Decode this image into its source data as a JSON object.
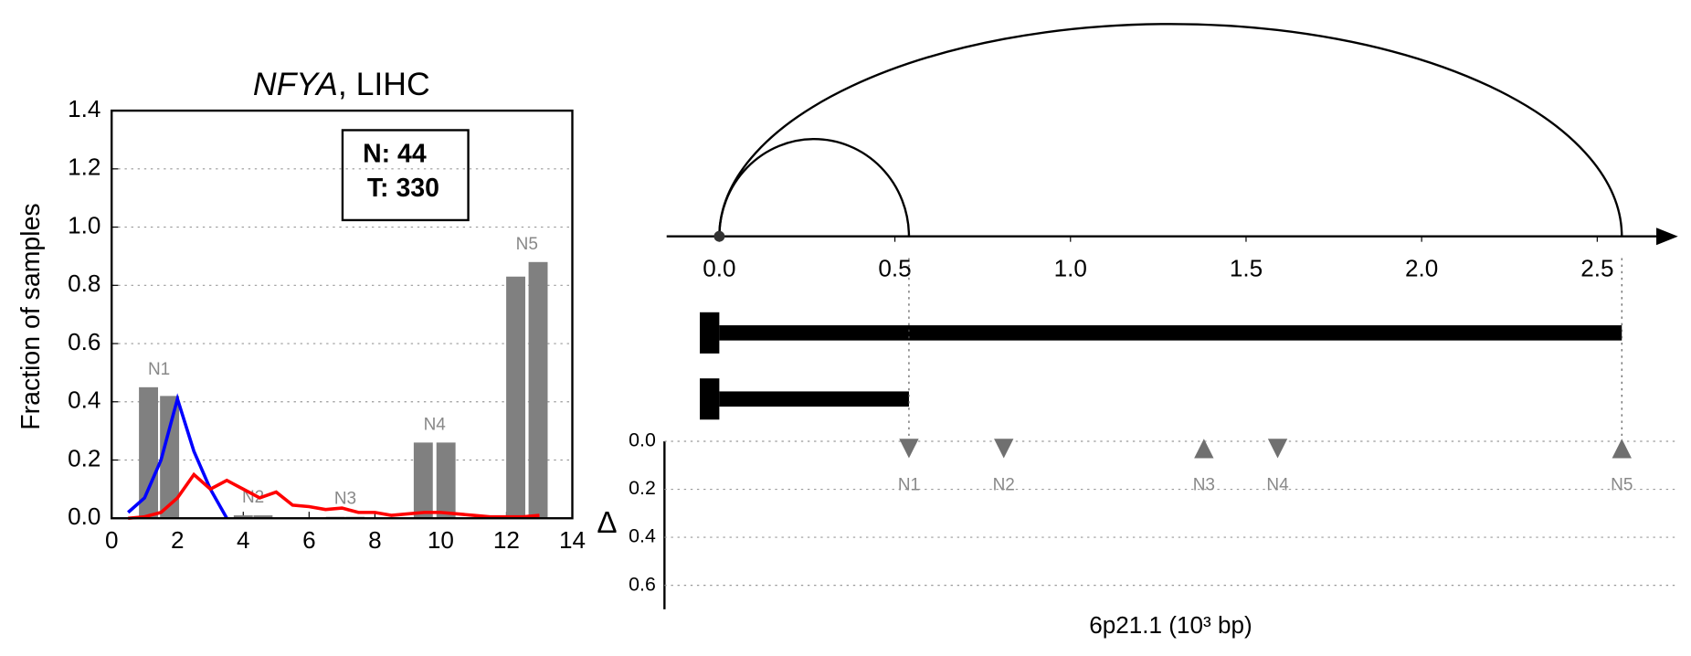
{
  "chart_data": [
    {
      "type": "bar",
      "title_gene": "NFYA",
      "title_rest": ", LIHC",
      "ylabel": "Fraction of samples",
      "xlim": [
        0,
        14
      ],
      "xticks": [
        0,
        2,
        4,
        6,
        8,
        10,
        12,
        14
      ],
      "ylim": [
        0,
        1.4
      ],
      "yticks": [
        {
          "value": 0,
          "label": "0.0"
        },
        {
          "value": 0.2,
          "label": "0.2"
        },
        {
          "value": 0.4,
          "label": "0.4"
        },
        {
          "value": 0.6,
          "label": "0.6"
        },
        {
          "value": 0.8,
          "label": "0.8"
        },
        {
          "value": 1.0,
          "label": "1.0"
        },
        {
          "value": 1.2,
          "label": "1.2"
        },
        {
          "value": 1.4,
          "label": "1.4"
        }
      ],
      "grid": true,
      "annotations": [
        "N: 44",
        "T: 330"
      ],
      "bar_color": "#808080",
      "bar_groups": [
        {
          "name": "N1",
          "x": [
            1.12,
            1.76
          ],
          "values": [
            0.45,
            0.42
          ]
        },
        {
          "name": "N2",
          "x": [
            4.0,
            4.6
          ],
          "values": [
            0.01,
            0.01
          ]
        },
        {
          "name": "N3",
          "x": [
            6.8,
            7.4
          ],
          "values": [
            0.005,
            0.005
          ]
        },
        {
          "name": "N4",
          "x": [
            9.47,
            10.16
          ],
          "values": [
            0.26,
            0.26
          ]
        },
        {
          "name": "N5",
          "x": [
            12.28,
            12.96
          ],
          "values": [
            0.83,
            0.88
          ]
        }
      ],
      "series": [
        {
          "color": "#0000ff",
          "x": [
            0.5,
            1,
            1.5,
            2,
            2.5,
            3,
            3.5
          ],
          "values": [
            0.02,
            0.07,
            0.2,
            0.41,
            0.23,
            0.1,
            0
          ]
        },
        {
          "color": "#ff0000",
          "x": [
            0.5,
            1,
            1.5,
            2,
            2.5,
            3,
            3.5,
            4,
            4.5,
            5,
            5.5,
            6,
            6.5,
            7,
            7.5,
            8,
            8.5,
            9,
            9.5,
            10,
            10.5,
            11,
            11.5,
            12,
            12.5,
            13
          ],
          "values": [
            0,
            0.005,
            0.02,
            0.07,
            0.15,
            0.1,
            0.13,
            0.1,
            0.07,
            0.09,
            0.045,
            0.04,
            0.03,
            0.035,
            0.02,
            0.02,
            0.01,
            0.015,
            0.02,
            0.02,
            0.015,
            0.01,
            0.005,
            0.005,
            0.005,
            0.01
          ]
        }
      ]
    },
    {
      "type": "arc",
      "xlabel": "6p21.1 (10³ bp)",
      "xlim": [
        -0.15,
        2.73
      ],
      "xticks": [
        {
          "value": 0,
          "label": "0.0"
        },
        {
          "value": 0.5,
          "label": "0.5"
        },
        {
          "value": 1.0,
          "label": "1.0"
        },
        {
          "value": 1.5,
          "label": "1.5"
        },
        {
          "value": 2.0,
          "label": "2.0"
        },
        {
          "value": 2.5,
          "label": "2.5"
        }
      ],
      "arcs": [
        {
          "start": 0,
          "end": 0.54
        },
        {
          "start": 0,
          "end": 2.57
        }
      ],
      "ylabel": "Δ",
      "ylim": [
        0,
        0.7
      ],
      "yticks": [
        {
          "value": 0,
          "label": "0.0"
        },
        {
          "value": 0.2,
          "label": "0.2"
        },
        {
          "value": 0.4,
          "label": "0.4"
        },
        {
          "value": 0.6,
          "label": "0.6"
        }
      ],
      "grid": true,
      "marker_color": "#707070",
      "markers": [
        {
          "name": "N1",
          "x": 0.54,
          "delta": 0.03,
          "direction": "down"
        },
        {
          "name": "N2",
          "x": 0.81,
          "delta": 0.03,
          "direction": "down"
        },
        {
          "name": "N3",
          "x": 1.38,
          "delta": 0.03,
          "direction": "up"
        },
        {
          "name": "N4",
          "x": 1.59,
          "delta": 0.03,
          "direction": "down"
        },
        {
          "name": "N5",
          "x": 2.57,
          "delta": 0.03,
          "direction": "up"
        }
      ]
    }
  ]
}
